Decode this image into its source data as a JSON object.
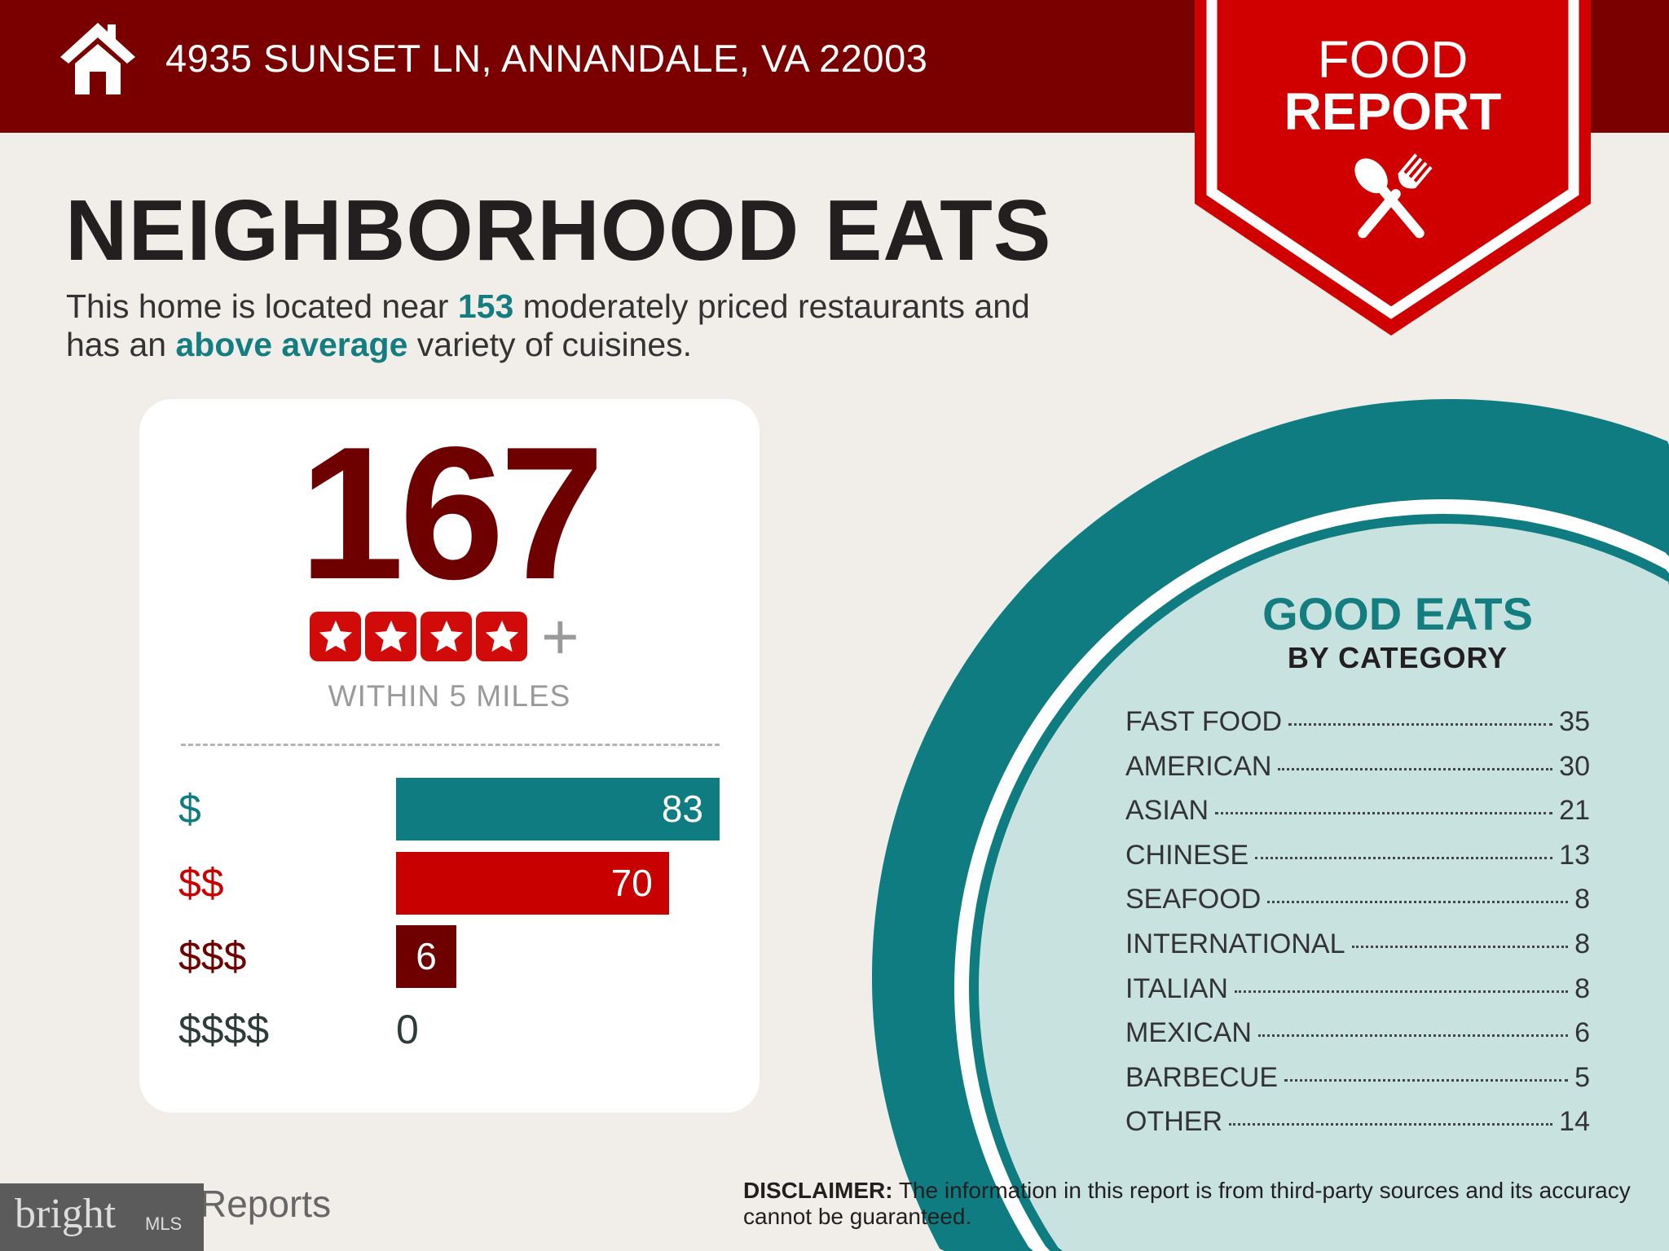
{
  "header": {
    "address": "4935 SUNSET LN, ANNANDALE, VA 22003",
    "home_icon": "home-icon"
  },
  "badge": {
    "line1": "FOOD",
    "line2": "REPORT",
    "icon": "spoon-fork-icon",
    "color": "#d10000"
  },
  "title": "NEIGHBORHOOD EATS",
  "subtitle": {
    "p1": "This home is located near ",
    "count": "153",
    "p2": " moderately priced restaurants and",
    "p3": "has an ",
    "variety": "above average",
    "p4": " variety of cuisines."
  },
  "summary": {
    "total": "167",
    "stars": 4,
    "plus": "+",
    "within": "WITHIN 5 MILES"
  },
  "price_bars": [
    {
      "label": "$",
      "value": 83,
      "color": "#0e7c80"
    },
    {
      "label": "$$",
      "value": 70,
      "color": "#c80000"
    },
    {
      "label": "$$$",
      "value": 6,
      "color": "#6e0000"
    },
    {
      "label": "$$$$",
      "value": 0,
      "color": "#2e3b3b"
    }
  ],
  "good_eats": {
    "title": "GOOD EATS",
    "subtitle": "BY CATEGORY",
    "items": [
      {
        "label": "FAST FOOD",
        "value": "35"
      },
      {
        "label": "AMERICAN",
        "value": "30"
      },
      {
        "label": "ASIAN",
        "value": "21"
      },
      {
        "label": "CHINESE",
        "value": "13"
      },
      {
        "label": "SEAFOOD",
        "value": "8"
      },
      {
        "label": "INTERNATIONAL",
        "value": "8"
      },
      {
        "label": "ITALIAN",
        "value": "8"
      },
      {
        "label": "MEXICAN",
        "value": "6"
      },
      {
        "label": "BARBECUE",
        "value": "5"
      },
      {
        "label": "OTHER",
        "value": "14"
      }
    ]
  },
  "disclaimer": {
    "label": "DISCLAIMER:",
    "text": " The information in this report is from third-party sources and its accuracy cannot be guaranteed."
  },
  "footer": {
    "logo_text": "Reports",
    "watermark": "bright",
    "watermark_mls": "MLS"
  },
  "colors": {
    "header": "#7a0000",
    "teal": "#0e7c80",
    "light_teal": "#c8e2df",
    "background": "#f1ede9"
  }
}
